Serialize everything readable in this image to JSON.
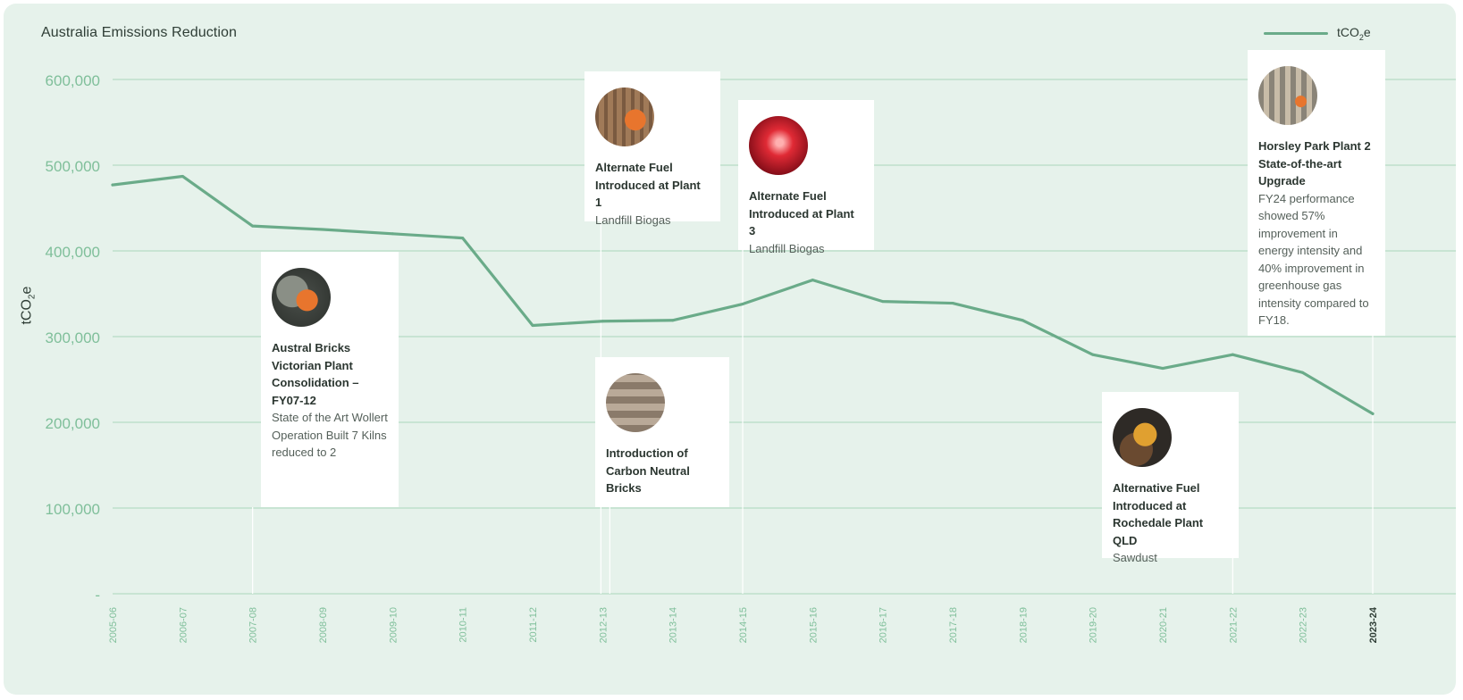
{
  "chart_data": {
    "type": "line",
    "title": "Australia Emissions Reduction",
    "ylabel": "tCO₂e",
    "ylim": [
      0,
      600000
    ],
    "yticks": [
      {
        "value": 0,
        "label": "-"
      },
      {
        "value": 100000,
        "label": "100,000"
      },
      {
        "value": 200000,
        "label": "200,000"
      },
      {
        "value": 300000,
        "label": "300,000"
      },
      {
        "value": 400000,
        "label": "400,000"
      },
      {
        "value": 500000,
        "label": "500,000"
      },
      {
        "value": 600000,
        "label": "600,000"
      }
    ],
    "grid": true,
    "legend_position": "top-right",
    "categories": [
      "2005-06",
      "2006-07",
      "2007-08",
      "2008-09",
      "2009-10",
      "2010-11",
      "2011-12",
      "2012-13",
      "2013-14",
      "2014-15",
      "2015-16",
      "2016-17",
      "2017-18",
      "2018-19",
      "2019-20",
      "2020-21",
      "2021-22",
      "2022-23",
      "2023-24"
    ],
    "series": [
      {
        "name": "tCO₂e",
        "color": "#6aab89",
        "values": [
          477000,
          487000,
          429000,
          425000,
          420000,
          415000,
          313000,
          318000,
          319000,
          338000,
          366000,
          341000,
          339000,
          319000,
          279000,
          263000,
          279000,
          258000,
          210000
        ]
      }
    ]
  },
  "legend": {
    "label_main": "tCO",
    "label_sub": "2",
    "label_end": "e"
  },
  "ylabel_parts": {
    "main": "tCO",
    "sub": "2",
    "end": "e"
  },
  "annotations": [
    {
      "category": "2007-08",
      "photo": "worker-orange-hiviz",
      "title": "Austral Bricks Victorian Plant Consolidation – FY07-12",
      "desc": "State of the Art Wollert Operation Built 7 Kilns reduced to 2"
    },
    {
      "category": "2012-13",
      "photo": "worker-scaffold",
      "title": "Alternate Fuel Introduced at Plant 1",
      "desc": "Landfill Biogas"
    },
    {
      "category": "2012-13",
      "photo": "brick-stack",
      "title": "Introduction of Carbon Neutral Bricks",
      "desc": ""
    },
    {
      "category": "2014-15",
      "photo": "red-kiln-flame",
      "title": "Alternate Fuel Introduced at Plant 3",
      "desc": "Landfill Biogas"
    },
    {
      "category": "2021-22",
      "photo": "yellow-machinery",
      "title": "Alternative Fuel Introduced at Rochedale Plant QLD",
      "desc": "Sawdust"
    },
    {
      "category": "2023-24",
      "photo": "factory-interior",
      "title": "Horsley Park Plant 2 State-of-the-art Upgrade",
      "desc": "FY24 performance showed 57% improvement in energy intensity and 40% improvement in greenhouse gas intensity compared to FY18."
    }
  ]
}
